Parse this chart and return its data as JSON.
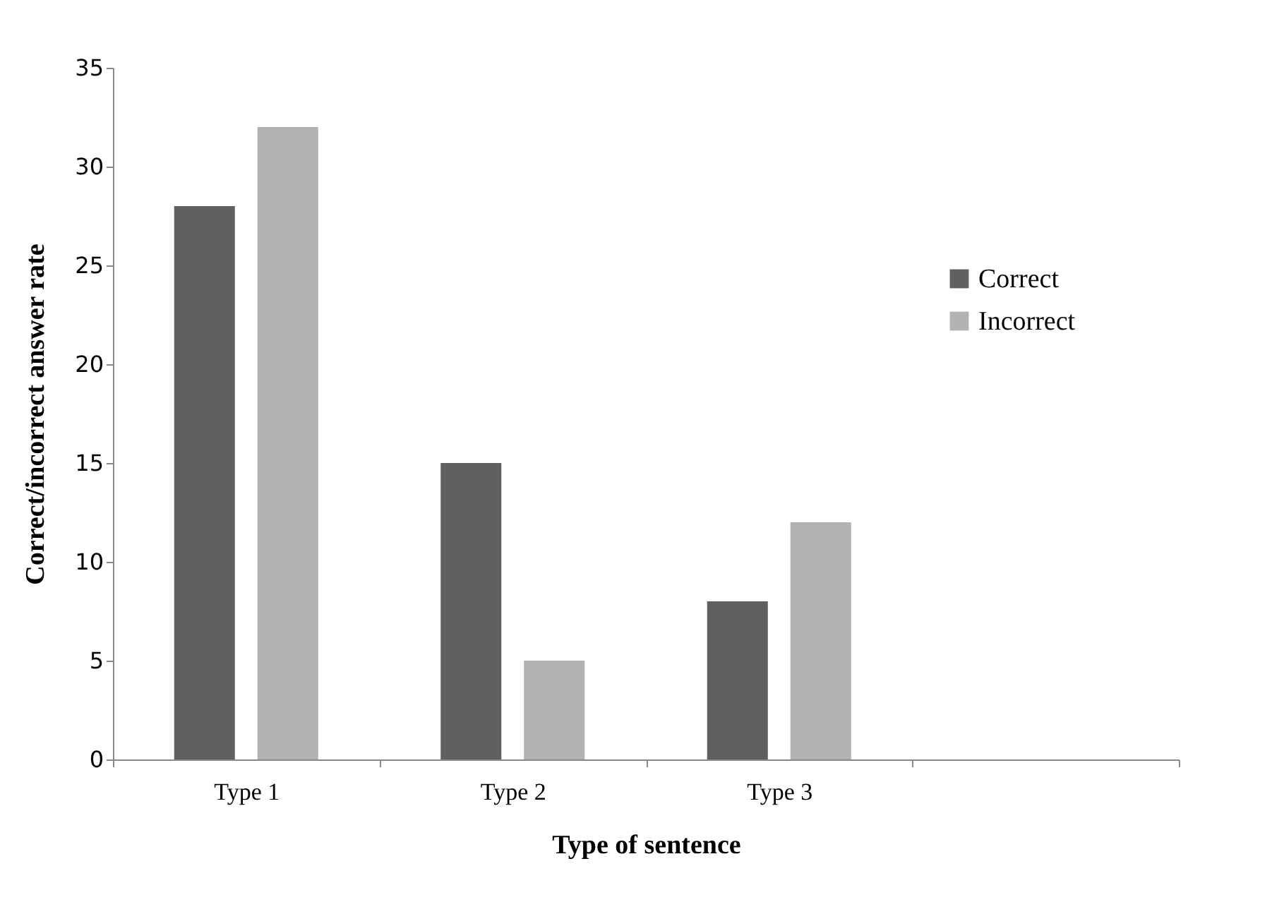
{
  "chart_data": {
    "type": "bar",
    "xlabel": "Type of sentence",
    "ylabel": "Correct/incorrect answer rate",
    "categories": [
      "Type 1",
      "Type 2",
      "Type 3",
      null
    ],
    "series": [
      {
        "name": "Correct",
        "color": "#606060",
        "values": [
          28,
          15,
          8,
          null
        ]
      },
      {
        "name": "Incorrect",
        "color": "#b2b2b2",
        "values": [
          32,
          5,
          12,
          null
        ]
      }
    ],
    "ylim": [
      0,
      35
    ],
    "yticks": [
      0,
      5,
      10,
      15,
      20,
      25,
      30,
      35
    ],
    "grid": false,
    "legend": "right"
  }
}
